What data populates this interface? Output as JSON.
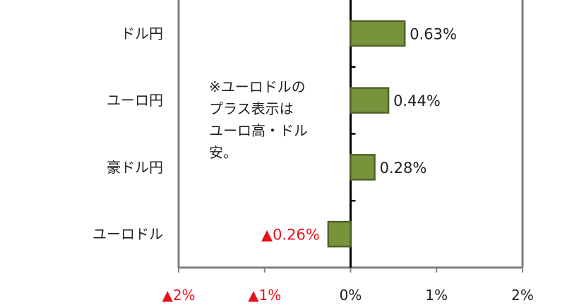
{
  "chart_data": {
    "type": "bar",
    "orientation": "horizontal",
    "categories": [
      "ドル円",
      "ユーロ円",
      "豪ドル円",
      "ユーロドル"
    ],
    "values": [
      0.63,
      0.44,
      0.28,
      -0.26
    ],
    "value_labels": [
      "0.63%",
      "0.44%",
      "0.28%",
      "▲0.26%"
    ],
    "xlim": [
      -2,
      2
    ],
    "x_ticks": [
      -2,
      -1,
      0,
      1,
      2
    ],
    "x_tick_labels": [
      "▲2%",
      "▲1%",
      "0%",
      "1%",
      "2%"
    ],
    "grid": false,
    "colors": {
      "bar_fill": "#77933c",
      "bar_stroke": "#4f6228",
      "negative_text": "#e8121a",
      "positive_text": "#222222",
      "axis": "#000000",
      "frame": "#808080"
    },
    "annotation": "※ユーロドルの\nプラス表示は\nユーロ高・ドル\n安。"
  }
}
